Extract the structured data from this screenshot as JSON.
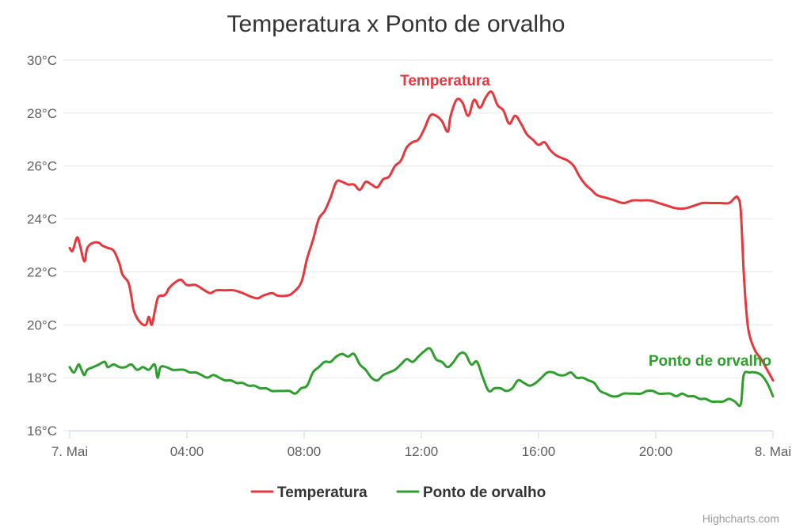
{
  "chart_data": {
    "type": "line",
    "title": "Temperatura x Ponto de orvalho",
    "y_axis": {
      "min": 16,
      "max": 30,
      "ticks": [
        {
          "value": 16,
          "label": "16°C"
        },
        {
          "value": 18,
          "label": "18°C"
        },
        {
          "value": 20,
          "label": "20°C"
        },
        {
          "value": 22,
          "label": "22°C"
        },
        {
          "value": 24,
          "label": "24°C"
        },
        {
          "value": 26,
          "label": "26°C"
        },
        {
          "value": 28,
          "label": "28°C"
        },
        {
          "value": 30,
          "label": "30°C"
        }
      ],
      "grid": true
    },
    "x_axis": {
      "unit": "hours since start of 7. Mai",
      "min": 0,
      "max": 24,
      "ticks": [
        {
          "value": 0,
          "label": "7. Mai"
        },
        {
          "value": 4,
          "label": "04:00"
        },
        {
          "value": 8,
          "label": "08:00"
        },
        {
          "value": 12,
          "label": "12:00"
        },
        {
          "value": 16,
          "label": "16:00"
        },
        {
          "value": 20,
          "label": "20:00"
        },
        {
          "value": 24,
          "label": "8. Mai"
        }
      ]
    },
    "legend": "bottom-center",
    "series": [
      {
        "name": "Temperatura",
        "color": "#e8363d",
        "label": "Temperatura",
        "x": [
          0.0,
          0.1,
          0.25,
          0.35,
          0.5,
          0.6,
          0.8,
          1.0,
          1.1,
          1.3,
          1.5,
          1.7,
          1.8,
          2.0,
          2.1,
          2.2,
          2.4,
          2.6,
          2.7,
          2.8,
          2.9,
          3.0,
          3.1,
          3.2,
          3.3,
          3.4,
          3.6,
          3.8,
          4.0,
          4.3,
          4.6,
          4.8,
          5.0,
          5.3,
          5.6,
          5.9,
          6.1,
          6.4,
          6.6,
          6.9,
          7.1,
          7.4,
          7.6,
          7.9,
          8.1,
          8.3,
          8.5,
          8.7,
          8.9,
          9.1,
          9.3,
          9.5,
          9.7,
          9.9,
          10.1,
          10.3,
          10.5,
          10.7,
          10.9,
          11.1,
          11.3,
          11.5,
          11.7,
          11.9,
          12.1,
          12.3,
          12.5,
          12.7,
          12.9,
          13.0,
          13.2,
          13.4,
          13.6,
          13.8,
          14.0,
          14.2,
          14.4,
          14.6,
          14.8,
          15.0,
          15.2,
          15.4,
          15.6,
          15.8,
          16.0,
          16.2,
          16.4,
          16.6,
          16.8,
          17.0,
          17.2,
          17.4,
          17.6,
          17.8,
          18.0,
          18.3,
          18.6,
          18.9,
          19.2,
          19.5,
          19.8,
          20.1,
          20.4,
          20.7,
          21.0,
          21.3,
          21.6,
          21.9,
          22.2,
          22.5,
          22.7,
          22.8,
          22.9,
          23.0,
          23.1,
          23.2,
          23.4,
          23.6,
          23.8,
          24.0
        ],
        "values": [
          22.9,
          22.8,
          23.3,
          23.0,
          22.4,
          22.9,
          23.1,
          23.1,
          23.0,
          22.9,
          22.8,
          22.3,
          21.9,
          21.6,
          21.1,
          20.5,
          20.1,
          20.0,
          20.3,
          20.0,
          20.5,
          21.0,
          21.1,
          21.1,
          21.2,
          21.4,
          21.6,
          21.7,
          21.5,
          21.5,
          21.3,
          21.2,
          21.3,
          21.3,
          21.3,
          21.2,
          21.1,
          21.0,
          21.1,
          21.2,
          21.1,
          21.1,
          21.2,
          21.6,
          22.5,
          23.2,
          24.0,
          24.3,
          24.8,
          25.4,
          25.4,
          25.3,
          25.3,
          25.1,
          25.4,
          25.3,
          25.2,
          25.5,
          25.6,
          26.0,
          26.2,
          26.7,
          26.9,
          27.0,
          27.4,
          27.9,
          27.9,
          27.7,
          27.3,
          27.9,
          28.5,
          28.4,
          27.9,
          28.5,
          28.2,
          28.6,
          28.8,
          28.3,
          28.1,
          27.6,
          27.9,
          27.6,
          27.2,
          27.0,
          26.8,
          26.9,
          26.6,
          26.4,
          26.3,
          26.2,
          26.0,
          25.6,
          25.3,
          25.1,
          24.9,
          24.8,
          24.7,
          24.6,
          24.7,
          24.7,
          24.7,
          24.6,
          24.5,
          24.4,
          24.4,
          24.5,
          24.6,
          24.6,
          24.6,
          24.6,
          24.8,
          24.8,
          24.3,
          22.0,
          20.4,
          19.6,
          19.0,
          18.7,
          18.3,
          17.9
        ]
      },
      {
        "name": "Ponto de orvalho",
        "color": "#2e9e2e",
        "label": "Ponto de orvalho",
        "x": [
          0.0,
          0.15,
          0.3,
          0.4,
          0.5,
          0.6,
          0.8,
          1.0,
          1.2,
          1.3,
          1.5,
          1.7,
          1.9,
          2.1,
          2.3,
          2.5,
          2.7,
          2.9,
          3.0,
          3.1,
          3.3,
          3.5,
          3.7,
          3.9,
          4.1,
          4.3,
          4.5,
          4.7,
          4.9,
          5.1,
          5.3,
          5.5,
          5.7,
          5.9,
          6.1,
          6.3,
          6.5,
          6.7,
          6.9,
          7.1,
          7.3,
          7.5,
          7.7,
          7.9,
          8.1,
          8.3,
          8.5,
          8.7,
          8.9,
          9.1,
          9.3,
          9.5,
          9.7,
          9.9,
          10.1,
          10.3,
          10.5,
          10.7,
          10.9,
          11.1,
          11.3,
          11.5,
          11.7,
          11.9,
          12.1,
          12.3,
          12.5,
          12.7,
          12.9,
          13.1,
          13.3,
          13.5,
          13.7,
          13.9,
          14.1,
          14.3,
          14.5,
          14.7,
          14.9,
          15.1,
          15.3,
          15.5,
          15.7,
          15.9,
          16.1,
          16.3,
          16.5,
          16.7,
          16.9,
          17.1,
          17.3,
          17.5,
          17.7,
          17.9,
          18.1,
          18.3,
          18.5,
          18.7,
          18.9,
          19.1,
          19.3,
          19.5,
          19.7,
          19.9,
          20.1,
          20.3,
          20.5,
          20.7,
          20.9,
          21.1,
          21.3,
          21.5,
          21.7,
          21.9,
          22.1,
          22.3,
          22.5,
          22.7,
          22.9,
          23.0,
          23.2,
          23.4,
          23.6,
          23.8,
          24.0
        ],
        "values": [
          18.4,
          18.2,
          18.5,
          18.3,
          18.1,
          18.3,
          18.4,
          18.5,
          18.6,
          18.4,
          18.5,
          18.4,
          18.4,
          18.5,
          18.3,
          18.4,
          18.3,
          18.5,
          18.0,
          18.4,
          18.4,
          18.3,
          18.3,
          18.3,
          18.2,
          18.2,
          18.1,
          18.0,
          18.1,
          18.0,
          17.9,
          17.9,
          17.8,
          17.8,
          17.7,
          17.7,
          17.6,
          17.6,
          17.5,
          17.5,
          17.5,
          17.5,
          17.4,
          17.6,
          17.7,
          18.2,
          18.4,
          18.6,
          18.6,
          18.8,
          18.9,
          18.8,
          18.9,
          18.5,
          18.3,
          18.0,
          17.9,
          18.1,
          18.2,
          18.3,
          18.5,
          18.7,
          18.6,
          18.8,
          19.0,
          19.1,
          18.7,
          18.6,
          18.4,
          18.6,
          18.9,
          18.9,
          18.5,
          18.6,
          18.0,
          17.5,
          17.6,
          17.6,
          17.5,
          17.6,
          17.9,
          17.8,
          17.7,
          17.8,
          18.0,
          18.2,
          18.2,
          18.1,
          18.1,
          18.2,
          18.0,
          18.0,
          17.9,
          17.8,
          17.5,
          17.4,
          17.3,
          17.3,
          17.4,
          17.4,
          17.4,
          17.4,
          17.5,
          17.5,
          17.4,
          17.4,
          17.4,
          17.3,
          17.4,
          17.3,
          17.3,
          17.2,
          17.2,
          17.1,
          17.1,
          17.1,
          17.2,
          17.1,
          17.0,
          18.1,
          18.2,
          18.2,
          18.1,
          17.8,
          17.3
        ]
      }
    ],
    "credits": "Highcharts.com"
  }
}
